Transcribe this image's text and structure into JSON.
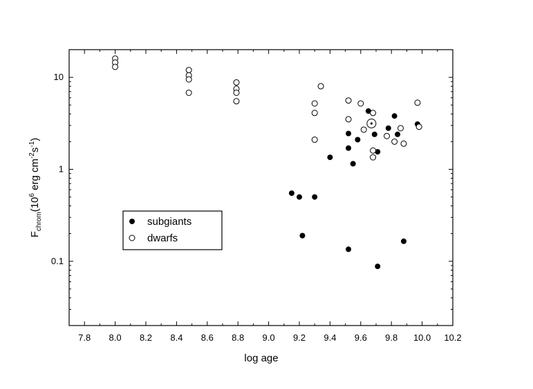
{
  "chart_data": {
    "type": "scatter",
    "title": "",
    "xlabel": "log age",
    "ylabel": {
      "main": "F",
      "subscript": "chrom",
      "unit_prefix": "(10",
      "unit_exp": "6",
      "unit_mid": " erg cm",
      "unit_exp2": "-2",
      "unit_mid2": "s",
      "unit_exp3": "-1",
      "unit_end": ")"
    },
    "xlim": [
      7.7,
      10.2
    ],
    "ylim": [
      0.02,
      20
    ],
    "yscale": "log",
    "grid": false,
    "legend_position": "center-left",
    "x_ticks": [
      "7.8",
      "8.0",
      "8.2",
      "8.4",
      "8.6",
      "8.8",
      "9.0",
      "9.2",
      "9.4",
      "9.6",
      "9.8",
      "10.0",
      "10.2"
    ],
    "y_ticks": [
      {
        "value": 0.1,
        "label": "0.1"
      },
      {
        "value": 1,
        "label": "1"
      },
      {
        "value": 10,
        "label": "10"
      }
    ],
    "series": [
      {
        "name": "subgiants",
        "marker": "filled-circle",
        "color": "#000000",
        "points": [
          [
            9.15,
            0.55
          ],
          [
            9.2,
            0.5
          ],
          [
            9.22,
            0.19
          ],
          [
            9.3,
            0.5
          ],
          [
            9.4,
            1.35
          ],
          [
            9.52,
            2.45
          ],
          [
            9.52,
            1.7
          ],
          [
            9.52,
            0.135
          ],
          [
            9.55,
            1.15
          ],
          [
            9.58,
            2.1
          ],
          [
            9.65,
            4.3
          ],
          [
            9.69,
            2.4
          ],
          [
            9.71,
            1.55
          ],
          [
            9.71,
            0.088
          ],
          [
            9.78,
            2.8
          ],
          [
            9.82,
            3.8
          ],
          [
            9.84,
            2.4
          ],
          [
            9.88,
            0.165
          ],
          [
            9.97,
            3.1
          ]
        ]
      },
      {
        "name": "dwarfs",
        "marker": "open-circle",
        "color": "#000000",
        "points": [
          [
            8.0,
            16
          ],
          [
            8.0,
            14.5
          ],
          [
            8.0,
            13
          ],
          [
            8.48,
            12
          ],
          [
            8.48,
            10.5
          ],
          [
            8.48,
            9.5
          ],
          [
            8.48,
            6.8
          ],
          [
            8.79,
            8.8
          ],
          [
            8.79,
            7.5
          ],
          [
            8.79,
            6.8
          ],
          [
            8.79,
            5.5
          ],
          [
            9.3,
            5.2
          ],
          [
            9.3,
            4.1
          ],
          [
            9.3,
            2.1
          ],
          [
            9.34,
            8.0
          ],
          [
            9.52,
            5.6
          ],
          [
            9.52,
            3.5
          ],
          [
            9.6,
            5.2
          ],
          [
            9.62,
            2.7
          ],
          [
            9.68,
            4.1
          ],
          [
            9.68,
            1.6
          ],
          [
            9.68,
            1.35
          ],
          [
            9.77,
            2.3
          ],
          [
            9.82,
            2.0
          ],
          [
            9.86,
            2.8
          ],
          [
            9.88,
            1.9
          ],
          [
            9.97,
            5.3
          ],
          [
            9.98,
            2.9
          ]
        ]
      },
      {
        "name": "sun",
        "marker": "sun-symbol",
        "color": "#000000",
        "points": [
          [
            9.67,
            3.15
          ]
        ]
      }
    ]
  }
}
